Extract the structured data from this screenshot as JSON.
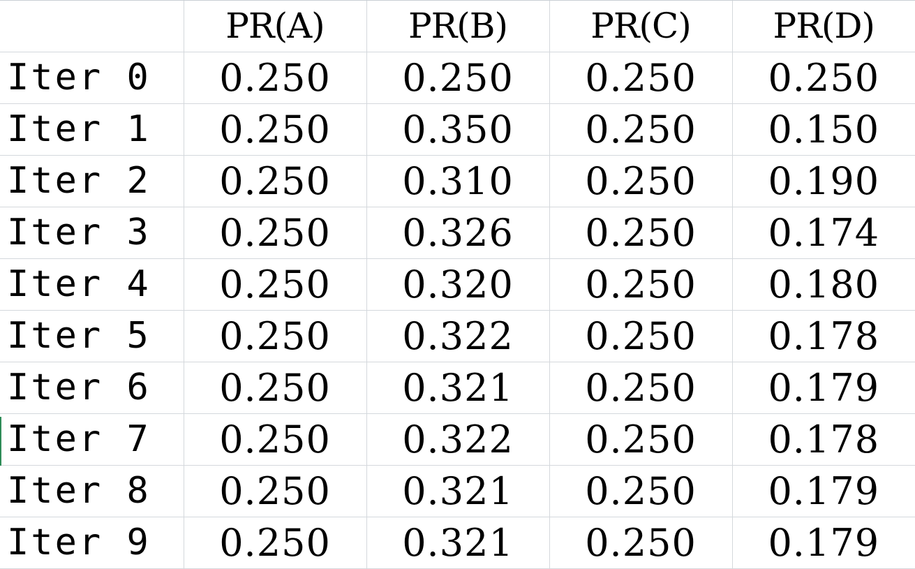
{
  "table": {
    "headers": [
      "",
      "PR(A)",
      "PR(B)",
      "PR(C)",
      "PR(D)"
    ],
    "rows": [
      {
        "label": "Iter 0",
        "values": [
          "0.250",
          "0.250",
          "0.250",
          "0.250"
        ]
      },
      {
        "label": "Iter 1",
        "values": [
          "0.250",
          "0.350",
          "0.250",
          "0.150"
        ]
      },
      {
        "label": "Iter 2",
        "values": [
          "0.250",
          "0.310",
          "0.250",
          "0.190"
        ]
      },
      {
        "label": "Iter 3",
        "values": [
          "0.250",
          "0.326",
          "0.250",
          "0.174"
        ]
      },
      {
        "label": "Iter 4",
        "values": [
          "0.250",
          "0.320",
          "0.250",
          "0.180"
        ]
      },
      {
        "label": "Iter 5",
        "values": [
          "0.250",
          "0.322",
          "0.250",
          "0.178"
        ]
      },
      {
        "label": "Iter 6",
        "values": [
          "0.250",
          "0.321",
          "0.250",
          "0.179"
        ]
      },
      {
        "label": "Iter 7",
        "values": [
          "0.250",
          "0.322",
          "0.250",
          "0.178"
        ]
      },
      {
        "label": "Iter 8",
        "values": [
          "0.250",
          "0.321",
          "0.250",
          "0.179"
        ]
      },
      {
        "label": "Iter 9",
        "values": [
          "0.250",
          "0.321",
          "0.250",
          "0.179"
        ]
      }
    ]
  },
  "colors": {
    "gridline": "#d4d8dc",
    "text": "#000000",
    "active_row_marker": "#2e8b57"
  }
}
